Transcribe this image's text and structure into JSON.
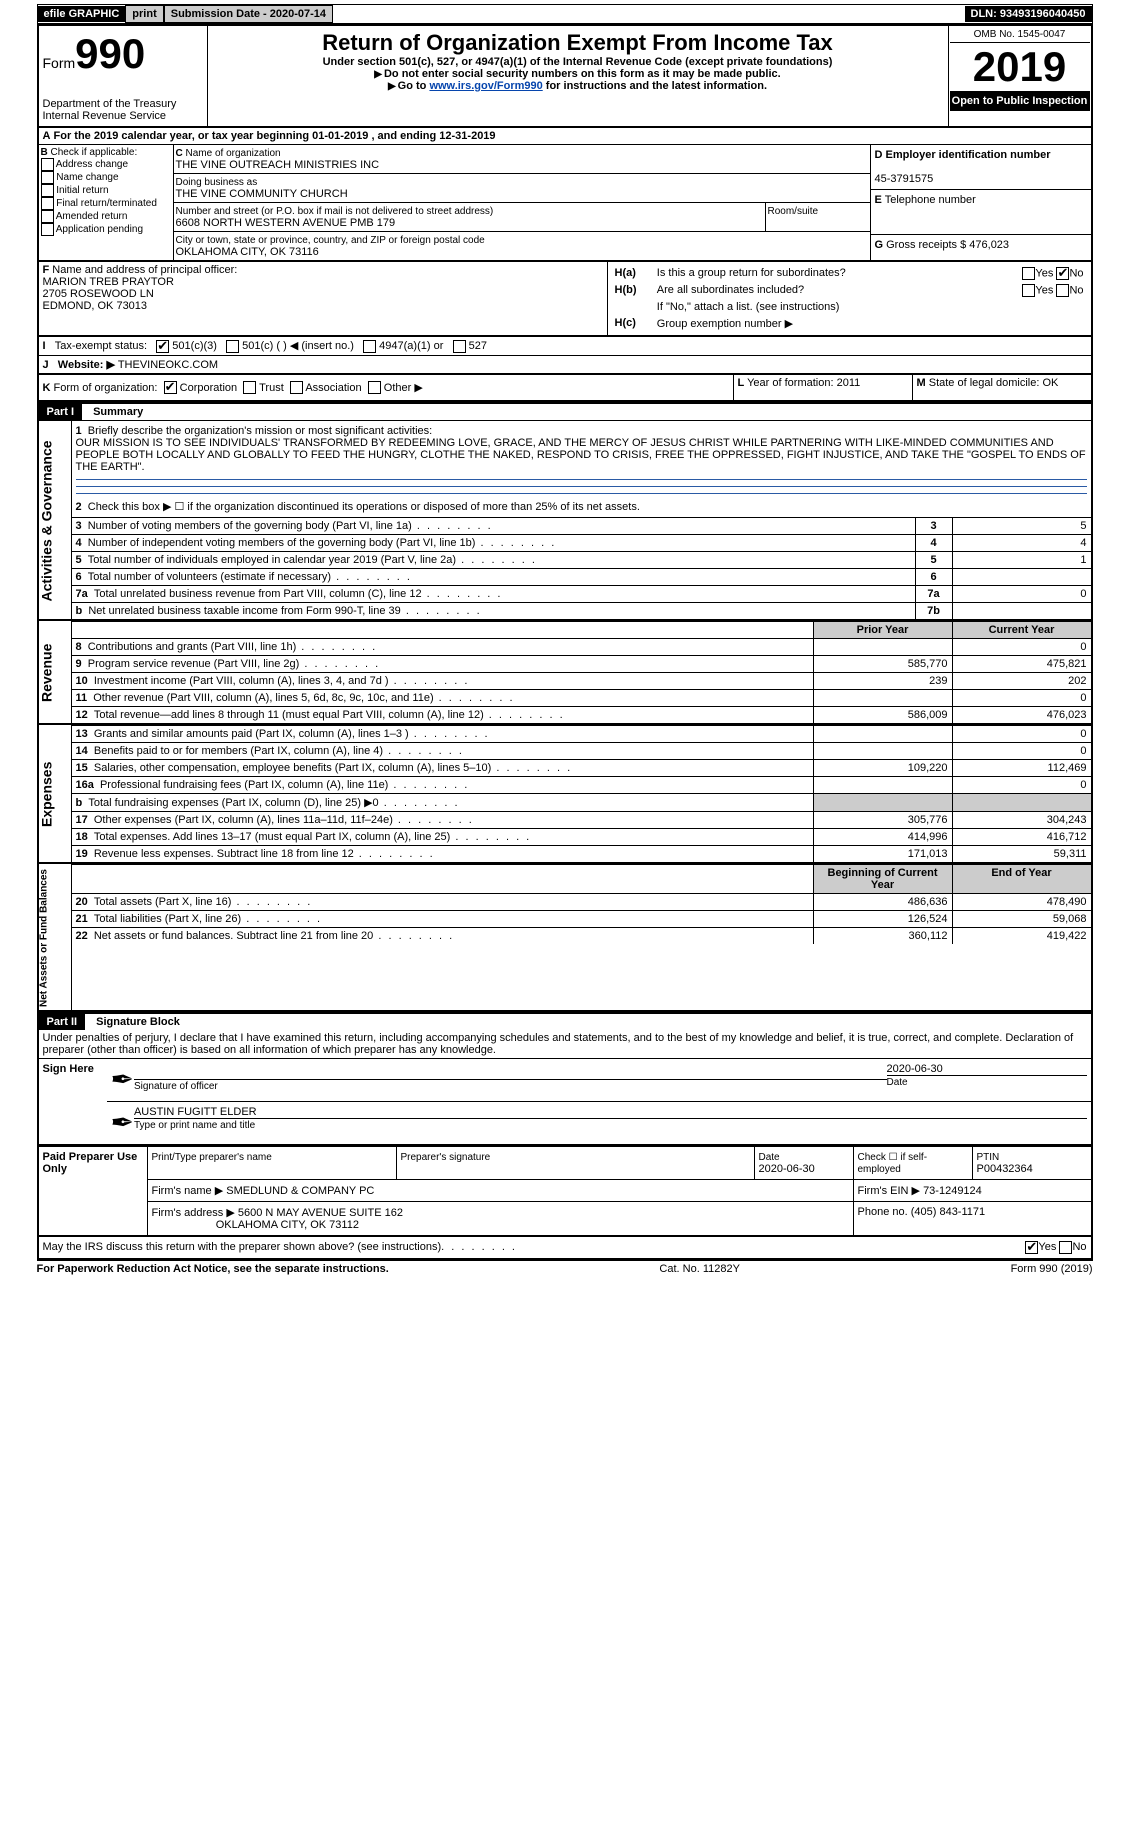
{
  "topbar": {
    "efile": "efile GRAPHIC",
    "print": "print",
    "sub_label": "Submission Date - 2020-07-14",
    "dln": "DLN: 93493196040450"
  },
  "header": {
    "form_label": "Form",
    "form_num": "990",
    "dept": "Department of the Treasury",
    "irs": "Internal Revenue Service",
    "title": "Return of Organization Exempt From Income Tax",
    "subtitle": "Under section 501(c), 527, or 4947(a)(1) of the Internal Revenue Code (except private foundations)",
    "note1": "Do not enter social security numbers on this form as it may be made public.",
    "note2_pre": "Go to ",
    "note2_link": "www.irs.gov/Form990",
    "note2_post": " for instructions and the latest information.",
    "omb": "OMB No. 1545-0047",
    "year": "2019",
    "open": "Open to Public Inspection"
  },
  "period": {
    "line": "For the 2019 calendar year, or tax year beginning 01-01-2019   , and ending 12-31-2019"
  },
  "boxB": {
    "label": "Check if applicable:",
    "opts": [
      "Address change",
      "Name change",
      "Initial return",
      "Final return/terminated",
      "Amended return",
      "Application pending"
    ]
  },
  "boxC": {
    "name_label": "Name of organization",
    "name": "THE VINE OUTREACH MINISTRIES INC",
    "dba_label": "Doing business as",
    "dba": "THE VINE COMMUNITY CHURCH",
    "addr_label": "Number and street (or P.O. box if mail is not delivered to street address)",
    "addr": "6608 NORTH WESTERN AVENUE PMB 179",
    "room_label": "Room/suite",
    "city_label": "City or town, state or province, country, and ZIP or foreign postal code",
    "city": "OKLAHOMA CITY, OK   73116"
  },
  "boxD": {
    "label": "Employer identification number",
    "val": "45-3791575"
  },
  "boxE": {
    "label": "Telephone number"
  },
  "boxG": {
    "label": "Gross receipts $",
    "val": "476,023"
  },
  "boxF": {
    "label": "Name and address of principal officer:",
    "name": "MARION TREB PRAYTOR",
    "addr1": "2705 ROSEWOOD LN",
    "addr2": "EDMOND, OK   73013"
  },
  "boxH": {
    "a_label": "Is this a group return for subordinates?",
    "b_label": "Are all subordinates included?",
    "b_note": "If \"No,\" attach a list. (see instructions)",
    "c_label": "Group exemption number ▶",
    "yes": "Yes",
    "no": "No"
  },
  "boxI": {
    "label": "Tax-exempt status:",
    "o1": "501(c)(3)",
    "o2": "501(c) (   ) ◀ (insert no.)",
    "o3": "4947(a)(1) or",
    "o4": "527"
  },
  "boxJ": {
    "label": "Website: ▶",
    "val": "THEVINEOKC.COM"
  },
  "boxK": {
    "label": "Form of organization:",
    "opts": [
      "Corporation",
      "Trust",
      "Association",
      "Other ▶"
    ]
  },
  "boxL": {
    "label": "Year of formation:",
    "val": "2011"
  },
  "boxM": {
    "label": "State of legal domicile:",
    "val": "OK"
  },
  "part1": {
    "hdr": "Part I",
    "title": "Summary",
    "q1_label": "Briefly describe the organization's mission or most significant activities:",
    "q1_text": "OUR MISSION IS TO SEE INDIVIDUALS' TRANSFORMED BY REDEEMING LOVE, GRACE, AND THE MERCY OF JESUS CHRIST WHILE PARTNERING WITH LIKE-MINDED COMMUNITIES AND PEOPLE BOTH LOCALLY AND GLOBALLY TO FEED THE HUNGRY, CLOTHE THE NAKED, RESPOND TO CRISIS, FREE THE OPPRESSED, FIGHT INJUSTICE, AND TAKE THE \"GOSPEL TO ENDS OF THE EARTH\".",
    "q2": "Check this box ▶ ☐  if the organization discontinued its operations or disposed of more than 25% of its net assets.",
    "rows_gov": [
      {
        "n": "3",
        "t": "Number of voting members of the governing body (Part VI, line 1a)",
        "box": "3",
        "v": "5"
      },
      {
        "n": "4",
        "t": "Number of independent voting members of the governing body (Part VI, line 1b)",
        "box": "4",
        "v": "4"
      },
      {
        "n": "5",
        "t": "Total number of individuals employed in calendar year 2019 (Part V, line 2a)",
        "box": "5",
        "v": "1"
      },
      {
        "n": "6",
        "t": "Total number of volunteers (estimate if necessary)",
        "box": "6",
        "v": ""
      },
      {
        "n": "7a",
        "t": "Total unrelated business revenue from Part VIII, column (C), line 12",
        "box": "7a",
        "v": "0"
      },
      {
        "n": "b",
        "t": "Net unrelated business taxable income from Form 990-T, line 39",
        "box": "7b",
        "v": ""
      }
    ],
    "col_prior": "Prior Year",
    "col_curr": "Current Year",
    "rows_rev": [
      {
        "n": "8",
        "t": "Contributions and grants (Part VIII, line 1h)",
        "p": "",
        "c": "0"
      },
      {
        "n": "9",
        "t": "Program service revenue (Part VIII, line 2g)",
        "p": "585,770",
        "c": "475,821"
      },
      {
        "n": "10",
        "t": "Investment income (Part VIII, column (A), lines 3, 4, and 7d )",
        "p": "239",
        "c": "202"
      },
      {
        "n": "11",
        "t": "Other revenue (Part VIII, column (A), lines 5, 6d, 8c, 9c, 10c, and 11e)",
        "p": "",
        "c": "0"
      },
      {
        "n": "12",
        "t": "Total revenue—add lines 8 through 11 (must equal Part VIII, column (A), line 12)",
        "p": "586,009",
        "c": "476,023"
      }
    ],
    "rows_exp": [
      {
        "n": "13",
        "t": "Grants and similar amounts paid (Part IX, column (A), lines 1–3 )",
        "p": "",
        "c": "0"
      },
      {
        "n": "14",
        "t": "Benefits paid to or for members (Part IX, column (A), line 4)",
        "p": "",
        "c": "0"
      },
      {
        "n": "15",
        "t": "Salaries, other compensation, employee benefits (Part IX, column (A), lines 5–10)",
        "p": "109,220",
        "c": "112,469"
      },
      {
        "n": "16a",
        "t": "Professional fundraising fees (Part IX, column (A), line 11e)",
        "p": "",
        "c": "0"
      },
      {
        "n": "b",
        "t": "Total fundraising expenses (Part IX, column (D), line 25) ▶0",
        "p": "GRAY",
        "c": "GRAY"
      },
      {
        "n": "17",
        "t": "Other expenses (Part IX, column (A), lines 11a–11d, 11f–24e)",
        "p": "305,776",
        "c": "304,243"
      },
      {
        "n": "18",
        "t": "Total expenses. Add lines 13–17 (must equal Part IX, column (A), line 25)",
        "p": "414,996",
        "c": "416,712"
      },
      {
        "n": "19",
        "t": "Revenue less expenses. Subtract line 18 from line 12",
        "p": "171,013",
        "c": "59,311"
      }
    ],
    "col_boy": "Beginning of Current Year",
    "col_eoy": "End of Year",
    "rows_na": [
      {
        "n": "20",
        "t": "Total assets (Part X, line 16)",
        "p": "486,636",
        "c": "478,490"
      },
      {
        "n": "21",
        "t": "Total liabilities (Part X, line 26)",
        "p": "126,524",
        "c": "59,068"
      },
      {
        "n": "22",
        "t": "Net assets or fund balances. Subtract line 21 from line 20",
        "p": "360,112",
        "c": "419,422"
      }
    ],
    "side_gov": "Activities & Governance",
    "side_rev": "Revenue",
    "side_exp": "Expenses",
    "side_na": "Net Assets or Fund Balances"
  },
  "part2": {
    "hdr": "Part II",
    "title": "Signature Block",
    "decl": "Under penalties of perjury, I declare that I have examined this return, including accompanying schedules and statements, and to the best of my knowledge and belief, it is true, correct, and complete. Declaration of preparer (other than officer) is based on all information of which preparer has any knowledge.",
    "sign_here": "Sign Here",
    "sig_officer": "Signature of officer",
    "sig_date": "2020-06-30",
    "date_label": "Date",
    "typed_name": "AUSTIN FUGITT ELDER",
    "typed_label": "Type or print name and title",
    "paid": "Paid Preparer Use Only",
    "prep_name_label": "Print/Type preparer's name",
    "prep_sig_label": "Preparer's signature",
    "prep_date_label": "Date",
    "prep_date": "2020-06-30",
    "check_if": "Check ☐ if self-employed",
    "ptin_label": "PTIN",
    "ptin": "P00432364",
    "firm_name_label": "Firm's name    ▶",
    "firm_name": "SMEDLUND & COMPANY PC",
    "firm_ein_label": "Firm's EIN ▶",
    "firm_ein": "73-1249124",
    "firm_addr_label": "Firm's address ▶",
    "firm_addr1": "5600 N MAY AVENUE SUITE 162",
    "firm_addr2": "OKLAHOMA CITY, OK   73112",
    "phone_label": "Phone no.",
    "phone": "(405) 843-1171",
    "may_irs": "May the IRS discuss this return with the preparer shown above? (see instructions)"
  },
  "footer": {
    "left": "For Paperwork Reduction Act Notice, see the separate instructions.",
    "mid": "Cat. No. 11282Y",
    "right": "Form 990 (2019)"
  }
}
